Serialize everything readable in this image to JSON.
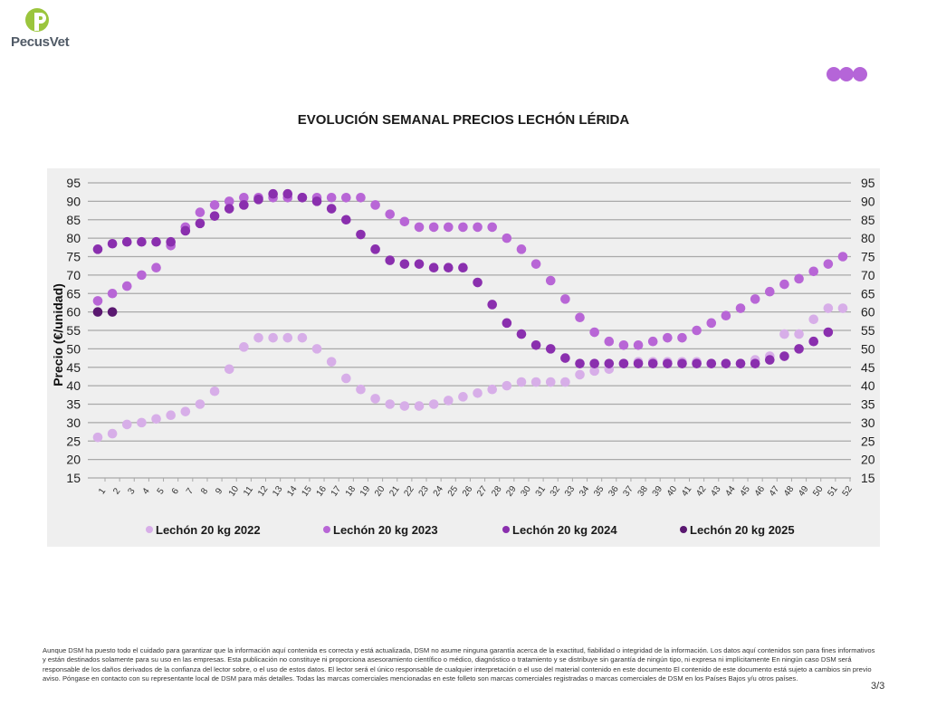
{
  "brand": {
    "name": "PecusVet",
    "logo_letter": "P",
    "logo_color": "#9bc53d",
    "dots_color": "#b565d8"
  },
  "page": {
    "number": "3/3"
  },
  "footer": {
    "disclaimer": "Aunque DSM ha puesto todo el cuidado para garantizar que la información aquí contenida es correcta y está actualizada, DSM no asume ninguna garantía acerca de la exactitud, fiabilidad o integridad de la información. Los datos aquí contenidos son para fines informativos y están destinados solamente para su uso en las empresas. Esta publicación no constituye ni proporciona asesoramiento científico o médico, diagnóstico o tratamiento y se distribuye sin garantía de ningún tipo, ni expresa ni implícitamente En ningún caso DSM será responsable de los daños derivados de la confianza del lector sobre, o el uso de estos datos. El lector será el único responsable de cualquier interpretación o el uso del material contenido en este documento El contenido de este documento está sujeto a cambios sin previo aviso. Póngase en contacto con su representante local de DSM para más detalles. Todas las marcas comerciales mencionadas en este folleto son marcas comerciales registradas o marcas comerciales de DSM en los Países Bajos y/u otros países."
  },
  "chart_data": {
    "type": "scatter",
    "title": "EVOLUCIÓN SEMANAL PRECIOS LECHÓN LÉRIDA",
    "xlabel": "",
    "ylabel": "Precio (€/unidad)",
    "ylim": [
      15,
      95
    ],
    "yticks": [
      15,
      20,
      25,
      30,
      35,
      40,
      45,
      50,
      55,
      60,
      65,
      70,
      75,
      80,
      85,
      90,
      95
    ],
    "grid": true,
    "legend_position": "bottom",
    "categories": [
      "1",
      "2",
      "3",
      "4",
      "5",
      "6",
      "7",
      "8",
      "9",
      "10",
      "11",
      "12",
      "13",
      "14",
      "15",
      "16",
      "17",
      "18",
      "19",
      "20",
      "21",
      "22",
      "23",
      "24",
      "25",
      "26",
      "27",
      "28",
      "29",
      "30",
      "31",
      "32",
      "33",
      "34",
      "35",
      "36",
      "37",
      "38",
      "39",
      "40",
      "41",
      "42",
      "43",
      "44",
      "45",
      "46",
      "47",
      "48",
      "49",
      "50",
      "51",
      "52"
    ],
    "series": [
      {
        "name": "Lechón 20 kg 2022",
        "color": "#d7aee8",
        "values": [
          26,
          27,
          29.5,
          30,
          31,
          32,
          33,
          35,
          38.5,
          44.5,
          50.5,
          53,
          53,
          53,
          53,
          50,
          46.5,
          42,
          39,
          36.5,
          35,
          34.5,
          34.5,
          35,
          36,
          37,
          38,
          39,
          40,
          41,
          41,
          41,
          41,
          43,
          44,
          44.5,
          46,
          46.5,
          46.5,
          46.5,
          46.5,
          46.5,
          46,
          46,
          46,
          47,
          48,
          54,
          54,
          58,
          61,
          61
        ]
      },
      {
        "name": "Lechón 20 kg 2023",
        "color": "#b866d6",
        "values": [
          63,
          65,
          67,
          70,
          72,
          78,
          83,
          87,
          89,
          90,
          91,
          91,
          91,
          91,
          91,
          91,
          91,
          91,
          91,
          89,
          86.5,
          84.5,
          83,
          83,
          83,
          83,
          83,
          83,
          80,
          77,
          73,
          68.5,
          63.5,
          58.5,
          54.5,
          52,
          51,
          51,
          52,
          53,
          53,
          55,
          57,
          59,
          61,
          63.5,
          65.5,
          67.5,
          69,
          71,
          73,
          75
        ]
      },
      {
        "name": "Lechón 20 kg 2024",
        "color": "#8a2fae",
        "values": [
          77,
          78.5,
          79,
          79,
          79,
          79,
          82,
          84,
          86,
          88,
          89,
          90.5,
          92,
          92,
          91,
          90,
          88,
          85,
          81,
          77,
          74,
          73,
          73,
          72,
          72,
          72,
          68,
          62,
          57,
          54,
          51,
          50,
          47.5,
          46,
          46,
          46,
          46,
          46,
          46,
          46,
          46,
          46,
          46,
          46,
          46,
          46,
          47,
          48,
          50,
          52,
          54.5,
          null
        ]
      },
      {
        "name": "Lechón 20 kg 2025",
        "color": "#5a1870",
        "values": [
          60,
          60,
          null,
          null,
          null,
          null,
          null,
          null,
          null,
          null,
          null,
          null,
          null,
          null,
          null,
          null,
          null,
          null,
          null,
          null,
          null,
          null,
          null,
          null,
          null,
          null,
          null,
          null,
          null,
          null,
          null,
          null,
          null,
          null,
          null,
          null,
          null,
          null,
          null,
          null,
          null,
          null,
          null,
          null,
          null,
          null,
          null,
          null,
          null,
          null,
          null,
          null
        ]
      }
    ]
  }
}
